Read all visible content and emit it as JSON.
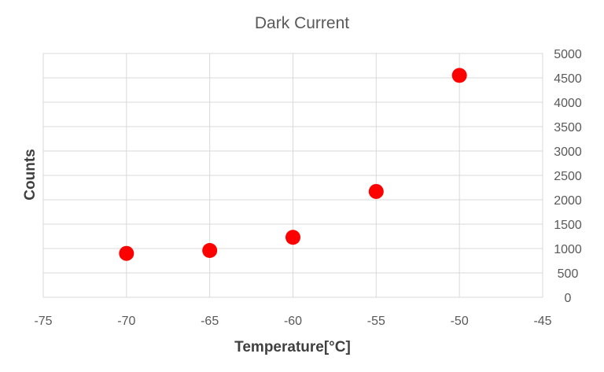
{
  "chart_data": {
    "type": "scatter",
    "title": "Dark Current",
    "xlabel": "Temperature[°C]",
    "ylabel": "Counts",
    "xlim": [
      -75,
      -45
    ],
    "ylim": [
      0,
      5000
    ],
    "x_ticks": [
      -75,
      -70,
      -65,
      -60,
      -55,
      -50,
      -45
    ],
    "y_ticks": [
      0,
      500,
      1000,
      1500,
      2000,
      2500,
      3000,
      3500,
      4000,
      4500,
      5000
    ],
    "grid": true,
    "y_axis_side": "right",
    "marker_color": "#ff0000",
    "series": [
      {
        "x": [
          -70,
          -65,
          -60,
          -55,
          -50
        ],
        "y": [
          900,
          960,
          1230,
          2170,
          4550
        ]
      }
    ]
  }
}
